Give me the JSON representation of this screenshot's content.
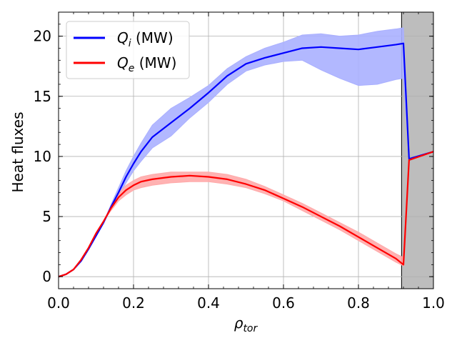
{
  "chart_data": {
    "type": "line",
    "title": "",
    "xlabel_symbol": "ρ",
    "xlabel_subscript": "tor",
    "ylabel": "Heat fluxes",
    "xlim": [
      0.0,
      1.0
    ],
    "ylim": [
      -1.0,
      22.0
    ],
    "xticks": [
      0.0,
      0.2,
      0.4,
      0.6,
      0.8,
      1.0
    ],
    "xtick_labels": [
      "0.0",
      "0.2",
      "0.4",
      "0.6",
      "0.8",
      "1.0"
    ],
    "yticks": [
      0,
      5,
      10,
      15,
      20
    ],
    "ytick_labels": [
      "0",
      "5",
      "10",
      "15",
      "20"
    ],
    "grid": true,
    "legend_position": "top-left",
    "shaded_region": {
      "x_start": 0.915,
      "x_end": 1.0,
      "color": "#bdbdbd"
    },
    "series": [
      {
        "name": "Q_i (MW)",
        "symbol": "Q",
        "subscript": "i",
        "unit": " (MW)",
        "color": "#0000ff",
        "band_color": "#aab0ff",
        "x": [
          0.0,
          0.02,
          0.04,
          0.06,
          0.08,
          0.1,
          0.12,
          0.14,
          0.16,
          0.18,
          0.2,
          0.22,
          0.25,
          0.3,
          0.35,
          0.4,
          0.45,
          0.5,
          0.55,
          0.6,
          0.65,
          0.7,
          0.75,
          0.8,
          0.85,
          0.9,
          0.92,
          0.935,
          1.0
        ],
        "y": [
          0.0,
          0.2,
          0.6,
          1.3,
          2.3,
          3.4,
          4.5,
          5.8,
          7.0,
          8.3,
          9.4,
          10.4,
          11.6,
          12.8,
          14.0,
          15.3,
          16.7,
          17.7,
          18.2,
          18.6,
          19.0,
          19.1,
          19.0,
          18.9,
          19.1,
          19.3,
          19.4,
          9.8,
          10.4
        ],
        "lower": [
          0.0,
          0.2,
          0.6,
          1.3,
          2.3,
          3.4,
          4.5,
          5.6,
          6.7,
          7.8,
          8.8,
          9.6,
          10.7,
          11.7,
          13.2,
          14.5,
          16.0,
          17.1,
          17.6,
          17.9,
          18.0,
          17.2,
          16.5,
          15.9,
          16.0,
          16.4,
          16.5,
          9.8,
          10.4
        ],
        "upper": [
          0.0,
          0.2,
          0.6,
          1.3,
          2.3,
          3.4,
          4.5,
          6.0,
          7.4,
          8.8,
          10.0,
          11.1,
          12.6,
          14.0,
          14.9,
          15.9,
          17.3,
          18.3,
          19.0,
          19.5,
          20.1,
          20.2,
          20.0,
          20.1,
          20.4,
          20.6,
          20.7,
          9.8,
          10.4
        ]
      },
      {
        "name": "Q_e (MW)",
        "symbol": "Q",
        "subscript": "e",
        "unit": " (MW)",
        "color": "#ff0000",
        "band_color": "#ffaaaa",
        "x": [
          0.0,
          0.02,
          0.04,
          0.06,
          0.08,
          0.1,
          0.12,
          0.14,
          0.16,
          0.18,
          0.2,
          0.22,
          0.25,
          0.3,
          0.35,
          0.4,
          0.45,
          0.5,
          0.55,
          0.6,
          0.65,
          0.7,
          0.75,
          0.8,
          0.85,
          0.9,
          0.92,
          0.935,
          1.0
        ],
        "y": [
          0.0,
          0.2,
          0.6,
          1.4,
          2.4,
          3.6,
          4.6,
          5.7,
          6.6,
          7.2,
          7.6,
          7.9,
          8.1,
          8.3,
          8.4,
          8.3,
          8.1,
          7.7,
          7.2,
          6.5,
          5.8,
          5.0,
          4.2,
          3.3,
          2.4,
          1.5,
          1.0,
          9.7,
          10.4
        ],
        "lower": [
          0.0,
          0.2,
          0.6,
          1.4,
          2.4,
          3.6,
          4.6,
          5.5,
          6.3,
          6.8,
          7.2,
          7.4,
          7.6,
          7.8,
          7.9,
          7.9,
          7.7,
          7.4,
          6.9,
          6.3,
          5.5,
          4.7,
          3.9,
          3.0,
          2.1,
          1.2,
          0.9,
          9.7,
          10.4
        ],
        "upper": [
          0.0,
          0.2,
          0.6,
          1.4,
          2.4,
          3.6,
          4.6,
          5.9,
          6.9,
          7.6,
          8.0,
          8.3,
          8.5,
          8.7,
          8.7,
          8.7,
          8.5,
          8.1,
          7.5,
          6.8,
          6.1,
          5.3,
          4.5,
          3.7,
          2.8,
          1.9,
          1.6,
          9.7,
          10.4
        ]
      }
    ]
  }
}
